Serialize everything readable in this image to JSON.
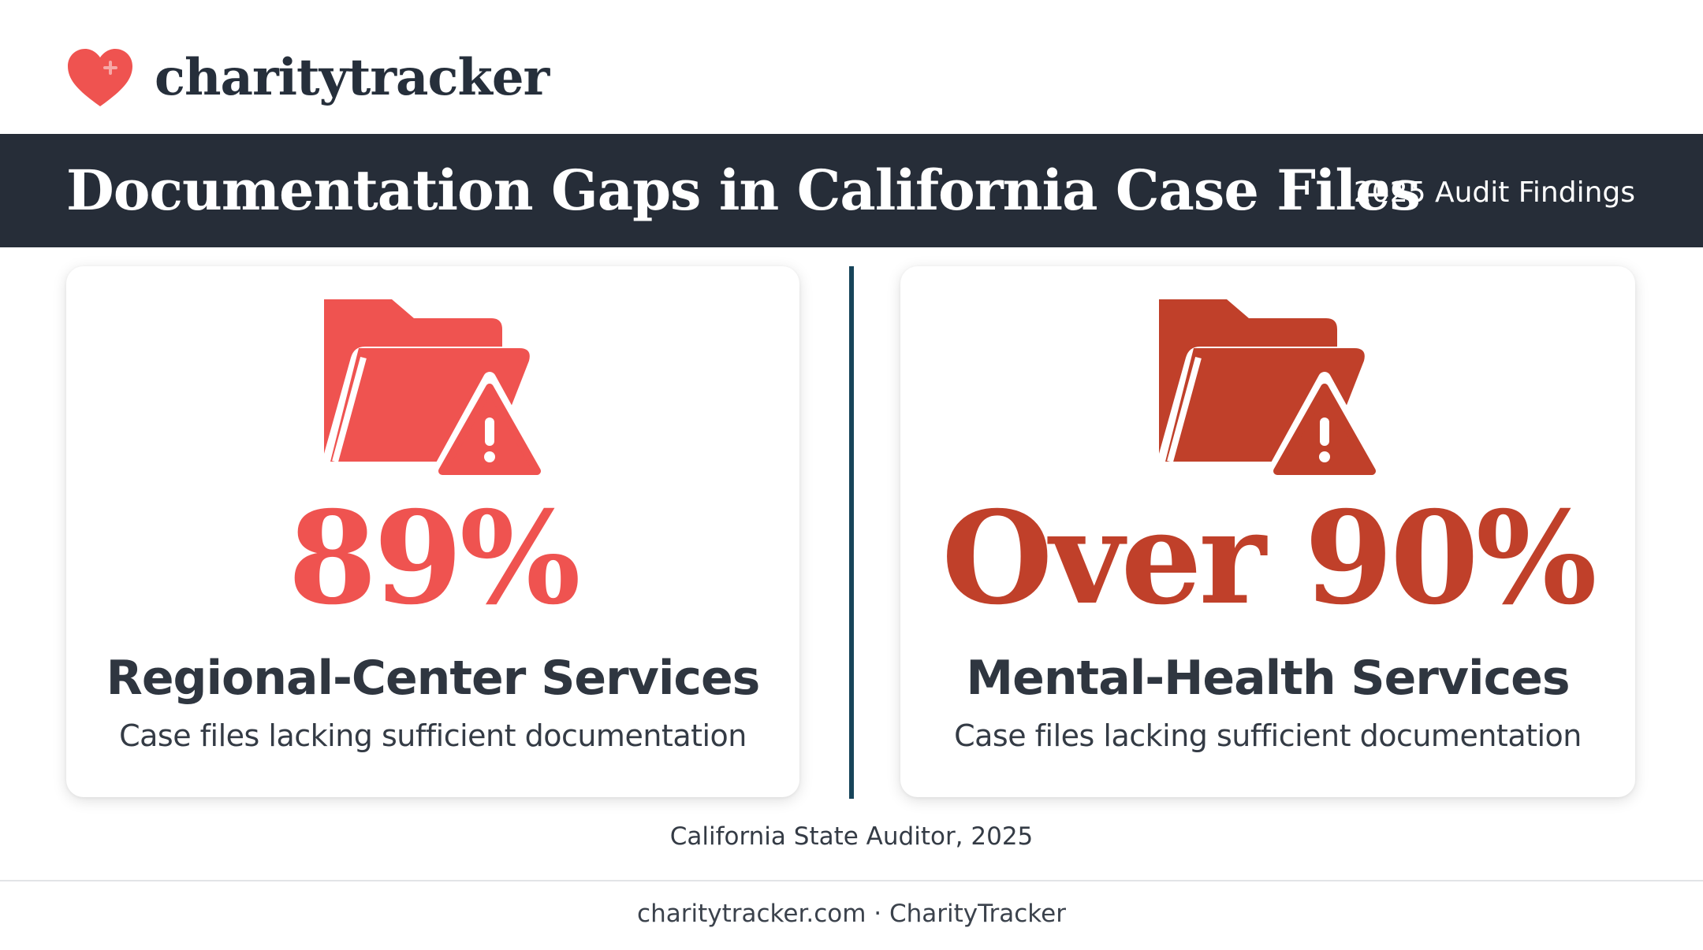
{
  "brand": {
    "name": "charitytracker",
    "heart_color": "#ef5350",
    "icon": "heart-plus-icon"
  },
  "banner": {
    "title": "Documentation Gaps in California Case Files",
    "subtitle": "2025 Audit Findings",
    "background": "#262d38"
  },
  "cards": [
    {
      "icon": "folder-warning-icon",
      "stat": "89%",
      "heading": "Regional-Center Services",
      "description": "Case files lacking sufficient documentation",
      "color": "#ef5350"
    },
    {
      "icon": "folder-warning-icon",
      "stat": "Over 90%",
      "heading": "Mental-Health Services",
      "description": "Case files lacking sufficient documentation",
      "color": "#c0402a"
    }
  ],
  "source": "California State Auditor, 2025",
  "footer": "charitytracker.com · CharityTracker"
}
